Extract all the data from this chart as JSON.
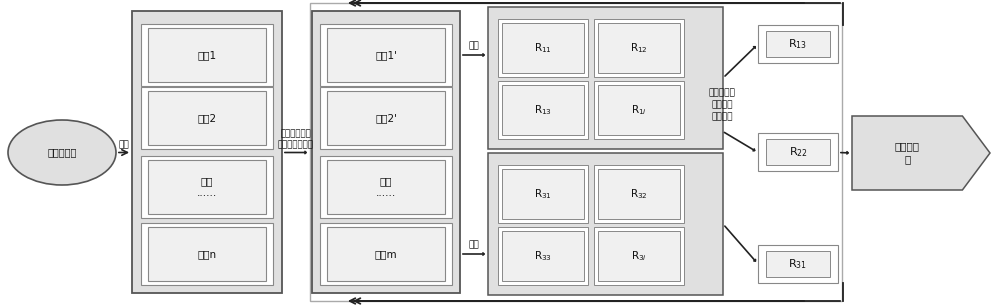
{
  "bg_color": "#ffffff",
  "dot_bg": "#e0e0e0",
  "box_fill": "#f5f5f5",
  "arrow_color": "#222222",
  "text_color": "#111111",
  "ellipse_label": "当前需求集",
  "arrow1_label": "划分",
  "arrow2_label": "利用去冒余算\n法消除重复需求",
  "arrow3_label": "划分",
  "arrow4_label": "划分",
  "mid_note": "利用去冗余\n算法消除\n重复需求",
  "final_label": "最小用例\n集",
  "req_box1": [
    "需求1",
    "需求2",
    "需求\n......",
    "需求n"
  ],
  "req_box2": [
    "需求1'",
    "需求2'",
    "需求\n......",
    "需求m"
  ],
  "r_top_row1": [
    "R$_{11}$",
    "R$_{12}$"
  ],
  "r_top_row2": [
    "R$_{13}$",
    "R$_{1i}$"
  ],
  "r_bot_row1": [
    "R$_{31}$",
    "R$_{32}$"
  ],
  "r_bot_row2": [
    "R$_{33}$",
    "R$_{3i}$"
  ],
  "r_out_top_label": "R$_{13}$",
  "r_out_mid_label": "R$_{22}$",
  "r_out_bot_label": "R$_{31}$"
}
